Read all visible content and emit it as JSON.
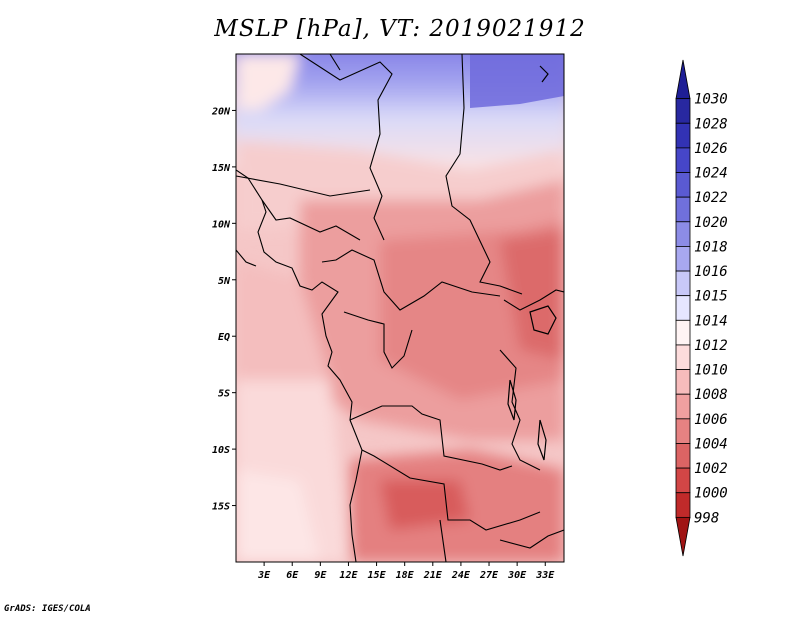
{
  "title": "MSLP [hPa], VT: 2019021912",
  "credit": "GrADS: IGES/COLA",
  "map": {
    "lon_range": [
      0,
      35
    ],
    "lat_range": [
      -20,
      25
    ],
    "lon_ticks": [
      "3E",
      "6E",
      "9E",
      "12E",
      "15E",
      "18E",
      "21E",
      "24E",
      "27E",
      "30E",
      "33E"
    ],
    "lon_tick_values": [
      3,
      6,
      9,
      12,
      15,
      18,
      21,
      24,
      27,
      30,
      33
    ],
    "lat_ticks": [
      "20N",
      "15N",
      "10N",
      "5N",
      "EQ",
      "5S",
      "10S",
      "15S"
    ],
    "lat_tick_values": [
      20,
      15,
      10,
      5,
      0,
      -5,
      -10,
      -15
    ]
  },
  "colorbar": {
    "labels": [
      "1030",
      "1028",
      "1026",
      "1024",
      "1022",
      "1020",
      "1018",
      "1016",
      "1015",
      "1014",
      "1012",
      "1010",
      "1008",
      "1006",
      "1004",
      "1002",
      "1000",
      "998"
    ],
    "colors": [
      "#1e1e96",
      "#2828a0",
      "#3232b4",
      "#4646c8",
      "#5a5ad2",
      "#7070dc",
      "#8c8ce6",
      "#a8a8f0",
      "#c8c8f8",
      "#e6e6ff",
      "#fff4f4",
      "#fddcdc",
      "#f7bcbc",
      "#f0a0a0",
      "#e68282",
      "#dc6464",
      "#d24646",
      "#c02a2a",
      "#a01414"
    ]
  }
}
